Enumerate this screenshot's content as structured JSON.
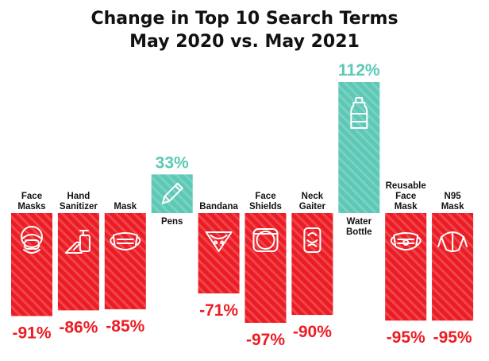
{
  "chart_data": {
    "type": "bar",
    "title_line1": "Change in Top 10 Search Terms",
    "title_line2": "May 2020 vs. May 2021",
    "categories": [
      [
        "Face",
        "Masks"
      ],
      [
        "Hand",
        "Sanitizer"
      ],
      [
        "Mask"
      ],
      [
        "Pens"
      ],
      [
        "Bandana"
      ],
      [
        "Face",
        "Shields"
      ],
      [
        "Neck",
        "Gaiter"
      ],
      [
        "Water",
        "Bottle"
      ],
      [
        "Reusable",
        "Face",
        "Mask"
      ],
      [
        "N95",
        "Mask"
      ]
    ],
    "values": [
      -91,
      -86,
      -85,
      33,
      -71,
      -97,
      -90,
      112,
      -95,
      -95
    ],
    "value_labels": [
      "-91%",
      "-86%",
      "-85%",
      "33%",
      "-71%",
      "-97%",
      "-90%",
      "112%",
      "-95%",
      "-95%"
    ],
    "icons": [
      "face-mask-person-icon",
      "hand-sanitizer-icon",
      "mask-icon",
      "pen-icon",
      "bandana-icon",
      "face-shield-icon",
      "neck-gaiter-icon",
      "water-bottle-icon",
      "reusable-face-mask-icon",
      "n95-mask-icon"
    ],
    "colors": {
      "positive": "#5cc8b5",
      "negative": "#ec1c24",
      "title": "#111111"
    },
    "ylim": [
      -100,
      115
    ],
    "grid": false,
    "legend": "none"
  }
}
